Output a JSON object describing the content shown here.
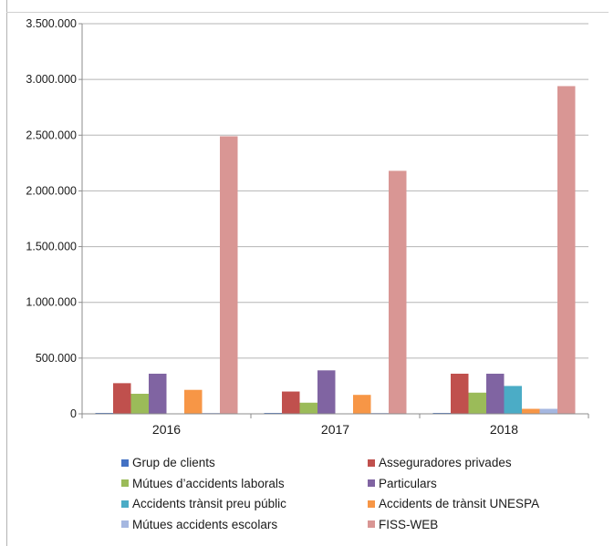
{
  "chart_data": {
    "type": "bar",
    "categories": [
      "2016",
      "2017",
      "2018"
    ],
    "ylim": [
      0,
      3500000
    ],
    "y_ticks": [
      0,
      500000,
      1000000,
      1500000,
      2000000,
      2500000,
      3000000,
      3500000
    ],
    "y_tick_labels": [
      "0",
      "500.000",
      "1.000.000",
      "1.500.000",
      "2.000.000",
      "2.500.000",
      "3.000.000",
      "3.500.000"
    ],
    "grid": true,
    "legend_position": "bottom",
    "series": [
      {
        "name": "Grup de clients",
        "color": "#4472c4",
        "values": [
          8000,
          8000,
          8000
        ]
      },
      {
        "name": "Asseguradores privades",
        "color": "#c0504d",
        "values": [
          275000,
          200000,
          360000
        ]
      },
      {
        "name": "Mútues d’accidents laborals",
        "color": "#9bbb59",
        "values": [
          180000,
          100000,
          190000
        ]
      },
      {
        "name": "Particulars",
        "color": "#8064a2",
        "values": [
          360000,
          390000,
          360000
        ]
      },
      {
        "name": "Accidents trànsit preu públic",
        "color": "#4bacc6",
        "values": [
          0,
          0,
          250000
        ]
      },
      {
        "name": "Accidents de trànsit UNESPA",
        "color": "#f79646",
        "values": [
          215000,
          170000,
          45000
        ]
      },
      {
        "name": "Mútues accidents escolars",
        "color": "#a5b7e0",
        "values": [
          8000,
          8000,
          45000
        ]
      },
      {
        "name": "FISS-WEB",
        "color": "#d99694",
        "values": [
          2490000,
          2180000,
          2940000
        ]
      }
    ]
  }
}
